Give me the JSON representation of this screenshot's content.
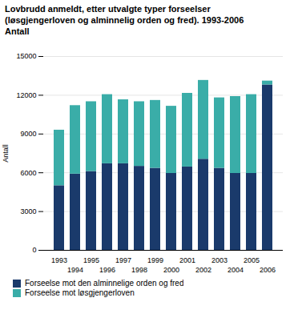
{
  "chart_data": {
    "type": "bar",
    "stacked": true,
    "title": "Lovbrudd anmeldt, etter utvalgte typer forseelser",
    "subtitle": [
      "(løsgjengerloven og alminnelig orden og fred). 1993-2006",
      "Antall"
    ],
    "ylabel": "Antall",
    "categories": [
      "1993",
      "1994",
      "1995",
      "1996",
      "1997",
      "1998",
      "1999",
      "2000",
      "2001",
      "2002",
      "2003",
      "2004",
      "2005",
      "2006"
    ],
    "series": [
      {
        "name": "Forseelse mot den alminnelige orden og fred",
        "color": "#1a3a6b",
        "values": [
          5000,
          5900,
          6100,
          6700,
          6700,
          6500,
          6350,
          5950,
          6450,
          7050,
          6350,
          5950,
          5950,
          12800
        ]
      },
      {
        "name": "Forseelse mot løsgjengerloven",
        "color": "#3aada8",
        "values": [
          4300,
          5300,
          5400,
          5350,
          4950,
          5000,
          5250,
          5200,
          5700,
          6100,
          5450,
          5950,
          6100,
          300
        ]
      }
    ],
    "ylim": [
      0,
      15000
    ],
    "yticks": [
      0,
      3000,
      6000,
      9000,
      12000,
      15000
    ],
    "grid": true,
    "legend": "lower left"
  }
}
